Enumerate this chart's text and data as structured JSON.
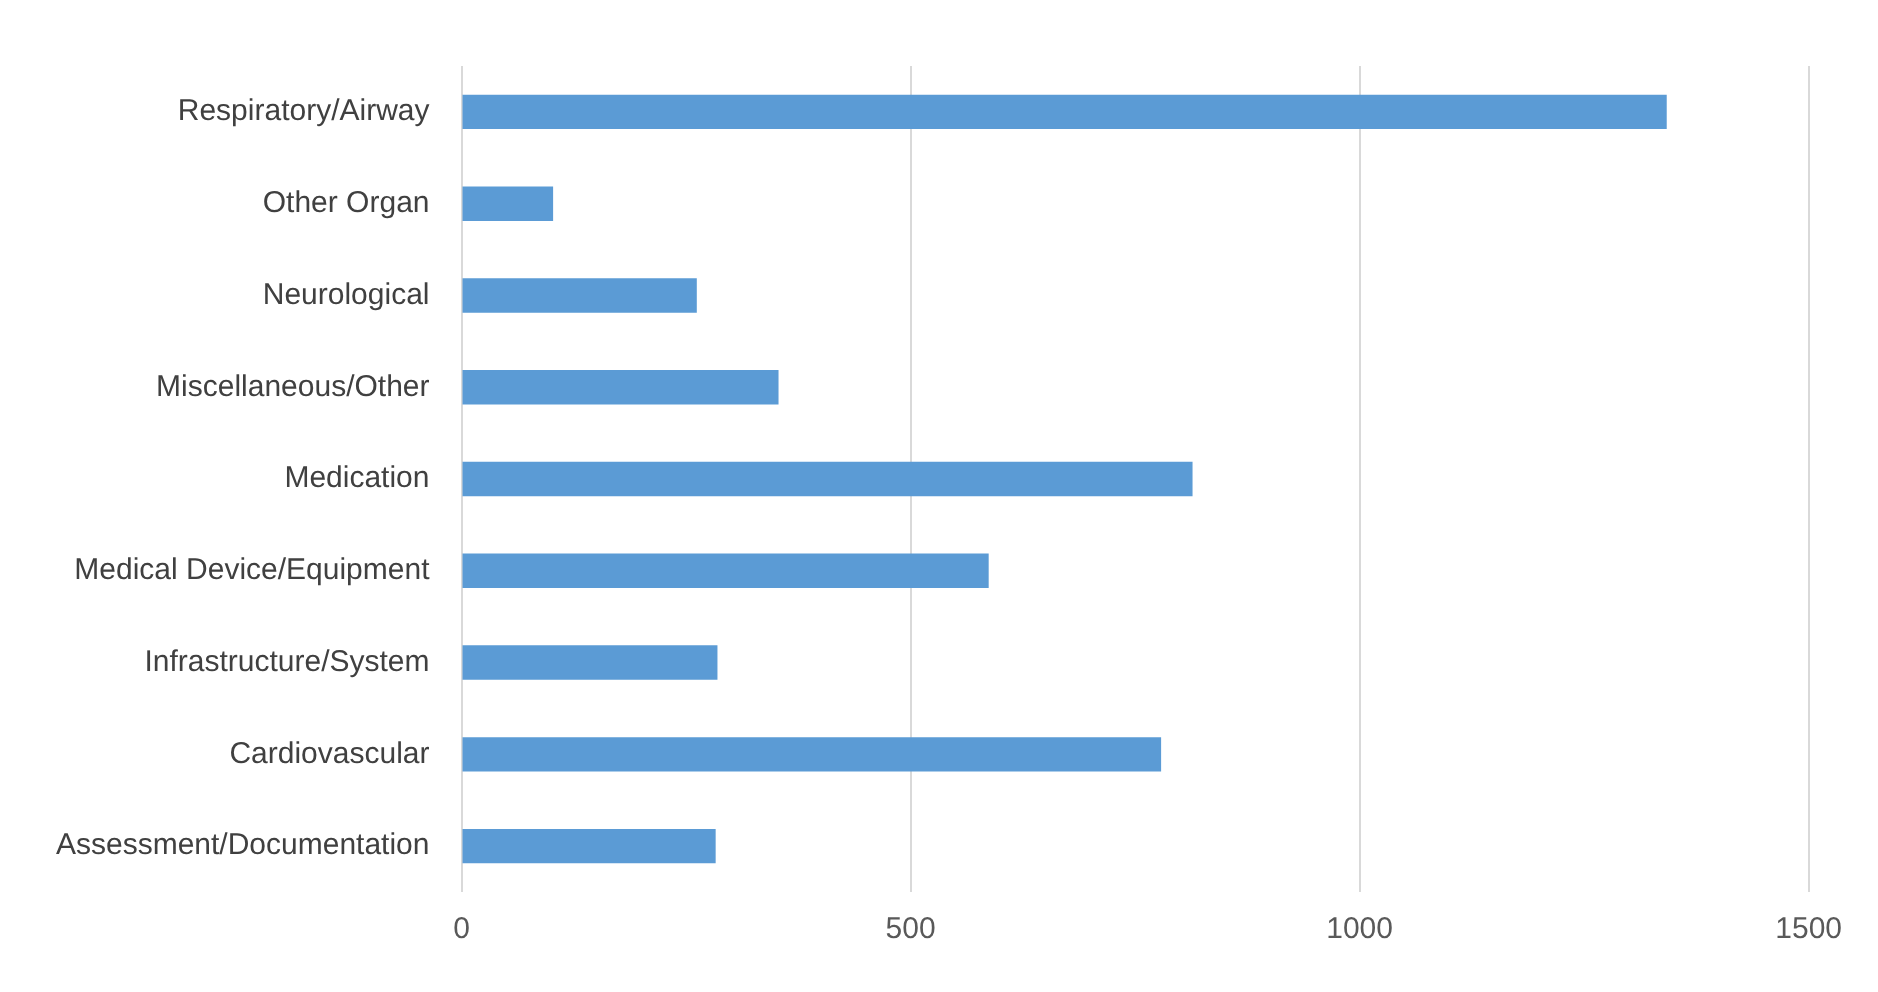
{
  "chart_data": {
    "type": "bar",
    "orientation": "horizontal",
    "categories": [
      "Respiratory/Airway",
      "Other Organ",
      "Neurological",
      "Miscellaneous/Other",
      "Medication",
      "Medical Device/Equipment",
      "Infrastructure/System",
      "Cardiovascular",
      "Assessment/Documentation"
    ],
    "values": [
      1342,
      102,
      262,
      353,
      814,
      587,
      285,
      779,
      283
    ],
    "color": "#5b9bd5",
    "xlim": [
      0,
      1500
    ],
    "xticks": [
      0,
      500,
      1000,
      1500
    ],
    "grid": "x",
    "legend": false
  }
}
